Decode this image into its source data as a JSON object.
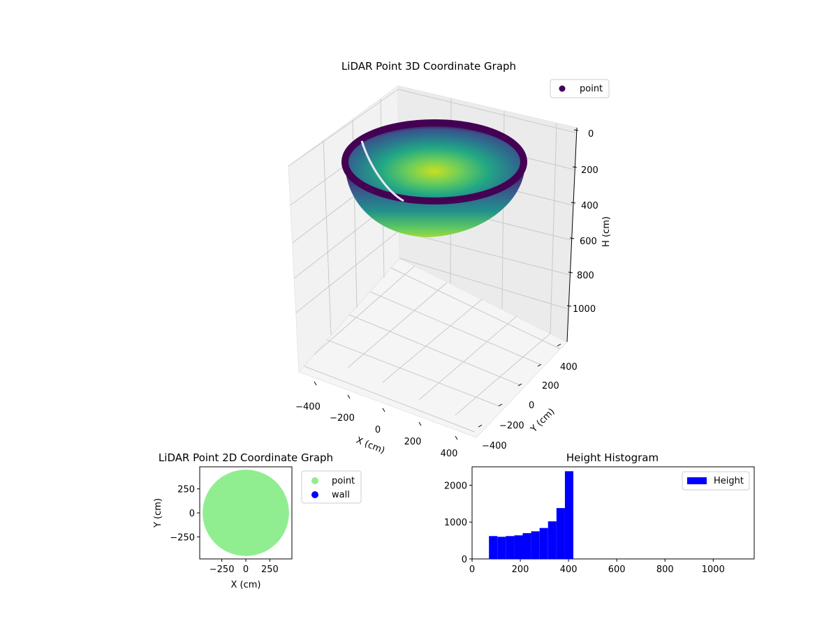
{
  "chart_data": [
    {
      "type": "scatter3d",
      "title": "LiDAR Point 3D Coordinate Graph",
      "xlabel": "X (cm)",
      "ylabel": "Y (cm)",
      "zlabel": "H (cm)",
      "xticks": [
        "−400",
        "−200",
        "0",
        "200",
        "400"
      ],
      "yticks": [
        "−400",
        "−200",
        "0",
        "200",
        "400"
      ],
      "zticks": [
        "0",
        "200",
        "400",
        "600",
        "800",
        "1000"
      ],
      "xlim": [
        -460,
        460
      ],
      "ylim": [
        -460,
        460
      ],
      "zlim": [
        1100,
        0
      ],
      "colormap": "viridis",
      "legend": [
        {
          "label": "point",
          "color": "#440154"
        }
      ],
      "legend_position": "top-right",
      "grid": true,
      "shape": "hemispherical bowl",
      "surface": {
        "radius": 450,
        "rim_height": 0,
        "bottom_height": 450
      }
    },
    {
      "type": "scatter",
      "title": "LiDAR Point 2D Coordinate Graph",
      "xlabel": "X (cm)",
      "ylabel": "Y (cm)",
      "xticks": [
        "−250",
        "0",
        "250"
      ],
      "yticks": [
        "250",
        "0",
        "−250"
      ],
      "xlim": [
        -480,
        480
      ],
      "ylim": [
        -480,
        480
      ],
      "region": {
        "shape": "disk",
        "center": [
          0,
          0
        ],
        "radius": 450
      },
      "series": [
        {
          "name": "point",
          "color": "#90ee90"
        },
        {
          "name": "wall",
          "color": "#0000ff"
        }
      ],
      "legend_position": "outside-right",
      "grid": false
    },
    {
      "type": "histogram",
      "title": "Height Histogram",
      "xticks": [
        "0",
        "200",
        "400",
        "600",
        "800",
        "1000"
      ],
      "yticks": [
        "0",
        "1000",
        "2000"
      ],
      "xlim": [
        0,
        1170
      ],
      "ylim": [
        0,
        2500
      ],
      "bin_width": 35,
      "bins": [
        {
          "start": 70,
          "count": 620
        },
        {
          "start": 105,
          "count": 600
        },
        {
          "start": 140,
          "count": 620
        },
        {
          "start": 175,
          "count": 640
        },
        {
          "start": 210,
          "count": 700
        },
        {
          "start": 245,
          "count": 750
        },
        {
          "start": 280,
          "count": 840
        },
        {
          "start": 315,
          "count": 1020
        },
        {
          "start": 350,
          "count": 1380
        },
        {
          "start": 385,
          "count": 2380
        }
      ],
      "series": [
        {
          "name": "Height",
          "color": "#0000ff"
        }
      ],
      "legend_position": "top-right",
      "grid": false
    }
  ]
}
